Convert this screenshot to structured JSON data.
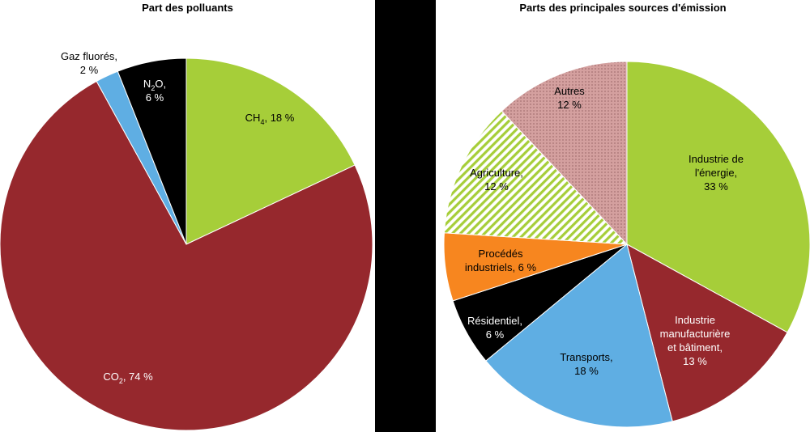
{
  "colors": {
    "green": "#a6ce39",
    "darkred": "#96282d",
    "blue": "#5faee3",
    "black": "#000000",
    "orange": "#f7861f",
    "rose": "#d4a09f"
  },
  "chart_data": [
    {
      "type": "pie",
      "title": "Part des polluants",
      "slices": [
        {
          "name": "CH4",
          "value": 18,
          "label_lines": [
            {
              "t": "CH",
              "sub": "4",
              "rest": ", 18 %"
            }
          ],
          "color": "#a6ce39",
          "fill": "solid"
        },
        {
          "name": "CO2",
          "value": 74,
          "label_lines": [
            {
              "t": "CO",
              "sub": "2",
              "rest": ", 74 %"
            }
          ],
          "color": "#96282d",
          "fill": "solid"
        },
        {
          "name": "Gaz fluorés",
          "value": 2,
          "label_lines": [
            {
              "t": "Gaz fluorés,"
            },
            {
              "t": "2 %"
            }
          ],
          "color": "#5faee3",
          "fill": "solid"
        },
        {
          "name": "N2O",
          "value": 6,
          "label_lines": [
            {
              "t": "N",
              "sub": "2",
              "rest": "O,"
            },
            {
              "t": "6 %"
            }
          ],
          "color": "#000000",
          "fill": "solid"
        }
      ]
    },
    {
      "type": "pie",
      "title": "Parts des principales sources d'émission",
      "slices": [
        {
          "name": "Industrie de l'énergie",
          "value": 33,
          "label_lines": [
            {
              "t": "Industrie de"
            },
            {
              "t": "l'énergie,"
            },
            {
              "t": "33 %"
            }
          ],
          "color": "#a6ce39",
          "fill": "solid"
        },
        {
          "name": "Industrie manufacturière et bâtiment",
          "value": 13,
          "label_lines": [
            {
              "t": "Industrie"
            },
            {
              "t": "manufacturière"
            },
            {
              "t": "et bâtiment,"
            },
            {
              "t": "13 %"
            }
          ],
          "color": "#96282d",
          "fill": "solid"
        },
        {
          "name": "Transports",
          "value": 18,
          "label_lines": [
            {
              "t": "Transports,"
            },
            {
              "t": "18 %"
            }
          ],
          "color": "#5faee3",
          "fill": "solid"
        },
        {
          "name": "Résidentiel",
          "value": 6,
          "label_lines": [
            {
              "t": "Résidentiel,"
            },
            {
              "t": "6 %"
            }
          ],
          "color": "#000000",
          "fill": "solid"
        },
        {
          "name": "Procédés industriels",
          "value": 6,
          "label_lines": [
            {
              "t": "Procédés"
            },
            {
              "t": "industriels, 6 %"
            }
          ],
          "color": "#f7861f",
          "fill": "solid"
        },
        {
          "name": "Agriculture",
          "value": 12,
          "label_lines": [
            {
              "t": "Agriculture,"
            },
            {
              "t": "12 %"
            }
          ],
          "color": "#a6ce39",
          "fill": "stripes"
        },
        {
          "name": "Autres",
          "value": 12,
          "label_lines": [
            {
              "t": "Autres"
            },
            {
              "t": "12 %"
            }
          ],
          "color": "#d4a09f",
          "fill": "dots"
        }
      ]
    }
  ]
}
